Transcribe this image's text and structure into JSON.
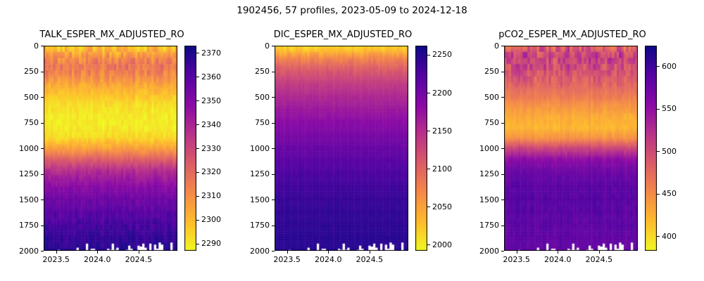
{
  "figure": {
    "title": "1902456, 57 profiles, 2023-05-09 to 2024-12-18",
    "float_id": "1902456",
    "n_profiles": 57,
    "date_start": "2023-05-09",
    "date_end": "2024-12-18"
  },
  "chart_data": [
    {
      "type": "heatmap",
      "title": "TALK_ESPER_MX_ADJUSTED_RO",
      "variable": "TALK",
      "x_range": [
        2023.35,
        2024.97
      ],
      "x_ticks": [
        2023.5,
        2024.0,
        2024.5
      ],
      "x_tick_labels": [
        "2023.5",
        "2024.0",
        "2024.5"
      ],
      "y_range": [
        0,
        2000
      ],
      "y_ticks": [
        0,
        250,
        500,
        750,
        1000,
        1250,
        1500,
        1750,
        2000
      ],
      "y_tick_labels": [
        "0",
        "250",
        "500",
        "750",
        "1000",
        "1250",
        "1500",
        "1750",
        "2000"
      ],
      "y_axis_inverted": true,
      "colormap": "plasma_r",
      "vmin": 2287,
      "vmax": 2373,
      "colorbar_ticks": [
        2290,
        2300,
        2310,
        2320,
        2330,
        2340,
        2350,
        2360,
        2370
      ],
      "depth_profile": {
        "depths": [
          0,
          50,
          100,
          200,
          300,
          400,
          500,
          600,
          700,
          800,
          900,
          1000,
          1100,
          1200,
          1300,
          1400,
          1500,
          1600,
          1700,
          1800,
          1900,
          2000
        ],
        "values": [
          2297,
          2303,
          2310,
          2318,
          2312,
          2303,
          2297,
          2292,
          2290,
          2290,
          2294,
          2306,
          2322,
          2336,
          2344,
          2350,
          2355,
          2359,
          2362,
          2365,
          2367,
          2369
        ]
      },
      "noise": {
        "surface": 8,
        "deep": 2.5,
        "surface_depth": 400,
        "col_amp": 4
      },
      "bottom_gaps": {
        "fraction": 0.38,
        "min_depth": 1915
      }
    },
    {
      "type": "heatmap",
      "title": "DIC_ESPER_MX_ADJUSTED_RO",
      "variable": "DIC",
      "x_range": [
        2023.35,
        2024.97
      ],
      "x_ticks": [
        2023.5,
        2024.0,
        2024.5
      ],
      "x_tick_labels": [
        "2023.5",
        "2024.0",
        "2024.5"
      ],
      "y_range": [
        0,
        2000
      ],
      "y_ticks": [
        0,
        250,
        500,
        750,
        1000,
        1250,
        1500,
        1750,
        2000
      ],
      "y_tick_labels": [
        "0",
        "250",
        "500",
        "750",
        "1000",
        "1250",
        "1500",
        "1750",
        "2000"
      ],
      "y_axis_inverted": true,
      "colormap": "plasma_r",
      "vmin": 1992,
      "vmax": 2262,
      "colorbar_ticks": [
        2000,
        2050,
        2100,
        2150,
        2200,
        2250
      ],
      "depth_profile": {
        "depths": [
          0,
          50,
          100,
          150,
          200,
          300,
          400,
          500,
          600,
          700,
          800,
          900,
          1000,
          1200,
          1400,
          1600,
          1800,
          2000
        ],
        "values": [
          2012,
          2032,
          2060,
          2082,
          2100,
          2124,
          2142,
          2156,
          2168,
          2180,
          2190,
          2200,
          2210,
          2226,
          2236,
          2242,
          2246,
          2249
        ]
      },
      "noise": {
        "surface": 12,
        "deep": 3,
        "surface_depth": 300,
        "col_amp": 5
      },
      "bottom_gaps": {
        "fraction": 0.38,
        "min_depth": 1915
      }
    },
    {
      "type": "heatmap",
      "title": "pCO2_ESPER_MX_ADJUSTED_RO",
      "variable": "pCO2",
      "x_range": [
        2023.35,
        2024.97
      ],
      "x_ticks": [
        2023.5,
        2024.0,
        2024.5
      ],
      "x_tick_labels": [
        "2023.5",
        "2024.0",
        "2024.5"
      ],
      "y_range": [
        0,
        2000
      ],
      "y_ticks": [
        0,
        250,
        500,
        750,
        1000,
        1250,
        1500,
        1750,
        2000
      ],
      "y_tick_labels": [
        "0",
        "250",
        "500",
        "750",
        "1000",
        "1250",
        "1500",
        "1750",
        "2000"
      ],
      "y_axis_inverted": true,
      "colormap": "plasma_r",
      "vmin": 383,
      "vmax": 624,
      "colorbar_ticks": [
        400,
        450,
        500,
        550,
        600
      ],
      "depth_profile": {
        "depths": [
          0,
          50,
          100,
          200,
          300,
          400,
          500,
          600,
          700,
          800,
          900,
          1000,
          1100,
          1200,
          1300,
          1400,
          1500,
          1600,
          1700,
          1800,
          1900,
          2000
        ],
        "values": [
          480,
          498,
          508,
          502,
          492,
          478,
          462,
          444,
          428,
          422,
          446,
          505,
          550,
          572,
          582,
          586,
          588,
          587,
          585,
          583,
          581,
          580
        ]
      },
      "noise": {
        "surface": 32,
        "deep": 5,
        "surface_depth": 400,
        "col_amp": 12
      },
      "bottom_gaps": {
        "fraction": 0.38,
        "min_depth": 1915
      }
    }
  ]
}
